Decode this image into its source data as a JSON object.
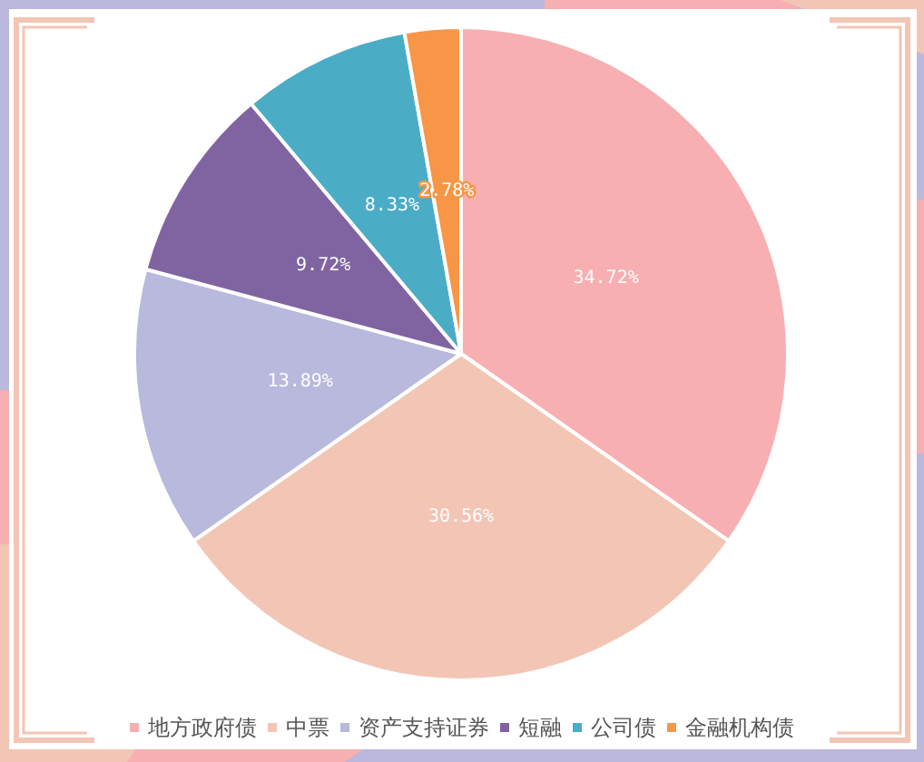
{
  "chart_data": {
    "type": "pie",
    "categories": [
      "地方政府债",
      "中票",
      "资产支持证券",
      "短融",
      "公司债",
      "金融机构债"
    ],
    "values": [
      34.72,
      30.56,
      13.89,
      9.72,
      8.33,
      2.78
    ],
    "colors": [
      "#f7afb1",
      "#f3c5b4",
      "#b9b9dd",
      "#8064a2",
      "#4bacc6",
      "#f79646"
    ],
    "value_labels": [
      "34.72%",
      "30.56%",
      "13.89%",
      "9.72%",
      "8.33%",
      "2.78%"
    ],
    "legend": "bottom"
  }
}
